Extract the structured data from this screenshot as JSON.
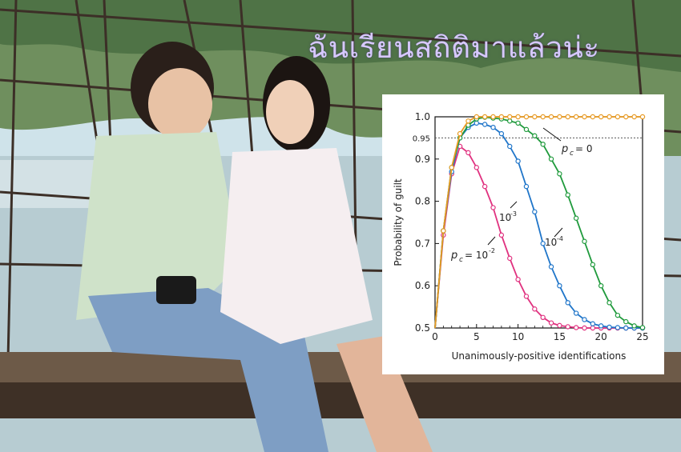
{
  "meme_caption": "ฉันเรียนสถิติมาแล้วน่ะ",
  "colors": {
    "sky": "#cfe3ea",
    "water": "#b7ccd2",
    "hills": "#6f8f5e",
    "bridge_wood": "#5a4634",
    "series_orange": "#e89a23",
    "series_green": "#1f9a3c",
    "series_blue": "#1f75c9",
    "series_magenta": "#e0317f"
  },
  "chart_data": {
    "type": "line",
    "xlabel": "Unanimously-positive identifications",
    "ylabel": "Probability of guilt",
    "xlim": [
      0,
      25
    ],
    "ylim": [
      0.5,
      1.0
    ],
    "xticks": [
      "0",
      "5",
      "10",
      "15",
      "20",
      "25"
    ],
    "yticks": [
      "0.5",
      "0.6",
      "0.7",
      "0.8",
      "0.9",
      "1.0"
    ],
    "reference_line": {
      "y": 0.95,
      "label": "0.95",
      "style": "dotted"
    },
    "grid": false,
    "legend": "none",
    "x": [
      0,
      1,
      2,
      3,
      4,
      5,
      6,
      7,
      8,
      9,
      10,
      11,
      12,
      13,
      14,
      15,
      16,
      17,
      18,
      19,
      20,
      21,
      22,
      23,
      24,
      25
    ],
    "series": [
      {
        "name": "p_c = 0",
        "color": "#e89a23",
        "values": [
          0.5,
          0.73,
          0.88,
          0.96,
          0.99,
          1.0,
          1.0,
          1.0,
          1.0,
          1.0,
          1.0,
          1.0,
          1.0,
          1.0,
          1.0,
          1.0,
          1.0,
          1.0,
          1.0,
          1.0,
          1.0,
          1.0,
          1.0,
          1.0,
          1.0,
          1.0
        ]
      },
      {
        "name": "10^-4",
        "color": "#1f9a3c",
        "values": [
          0.5,
          0.73,
          0.88,
          0.95,
          0.98,
          0.995,
          0.999,
          0.997,
          0.995,
          0.99,
          0.985,
          0.97,
          0.955,
          0.935,
          0.9,
          0.865,
          0.815,
          0.76,
          0.705,
          0.65,
          0.6,
          0.56,
          0.53,
          0.515,
          0.505,
          0.501
        ]
      },
      {
        "name": "10^-3",
        "color": "#1f75c9",
        "values": [
          0.5,
          0.73,
          0.87,
          0.95,
          0.975,
          0.985,
          0.982,
          0.975,
          0.96,
          0.93,
          0.895,
          0.835,
          0.775,
          0.7,
          0.645,
          0.6,
          0.56,
          0.535,
          0.52,
          0.51,
          0.505,
          0.502,
          0.501,
          0.5,
          0.5,
          0.5
        ]
      },
      {
        "name": "10^-2",
        "color": "#e0317f",
        "values": [
          0.5,
          0.72,
          0.865,
          0.93,
          0.915,
          0.88,
          0.835,
          0.785,
          0.72,
          0.665,
          0.615,
          0.575,
          0.545,
          0.525,
          0.512,
          0.506,
          0.503,
          0.501,
          0.5,
          0.5,
          0.5,
          0.5,
          0.5,
          0.5,
          0.5,
          0.5
        ]
      }
    ],
    "annotations": [
      "p",
      "c",
      "= 0",
      "10",
      "-3",
      "10",
      "-4",
      "p",
      "c",
      "= 10",
      "-2"
    ]
  }
}
